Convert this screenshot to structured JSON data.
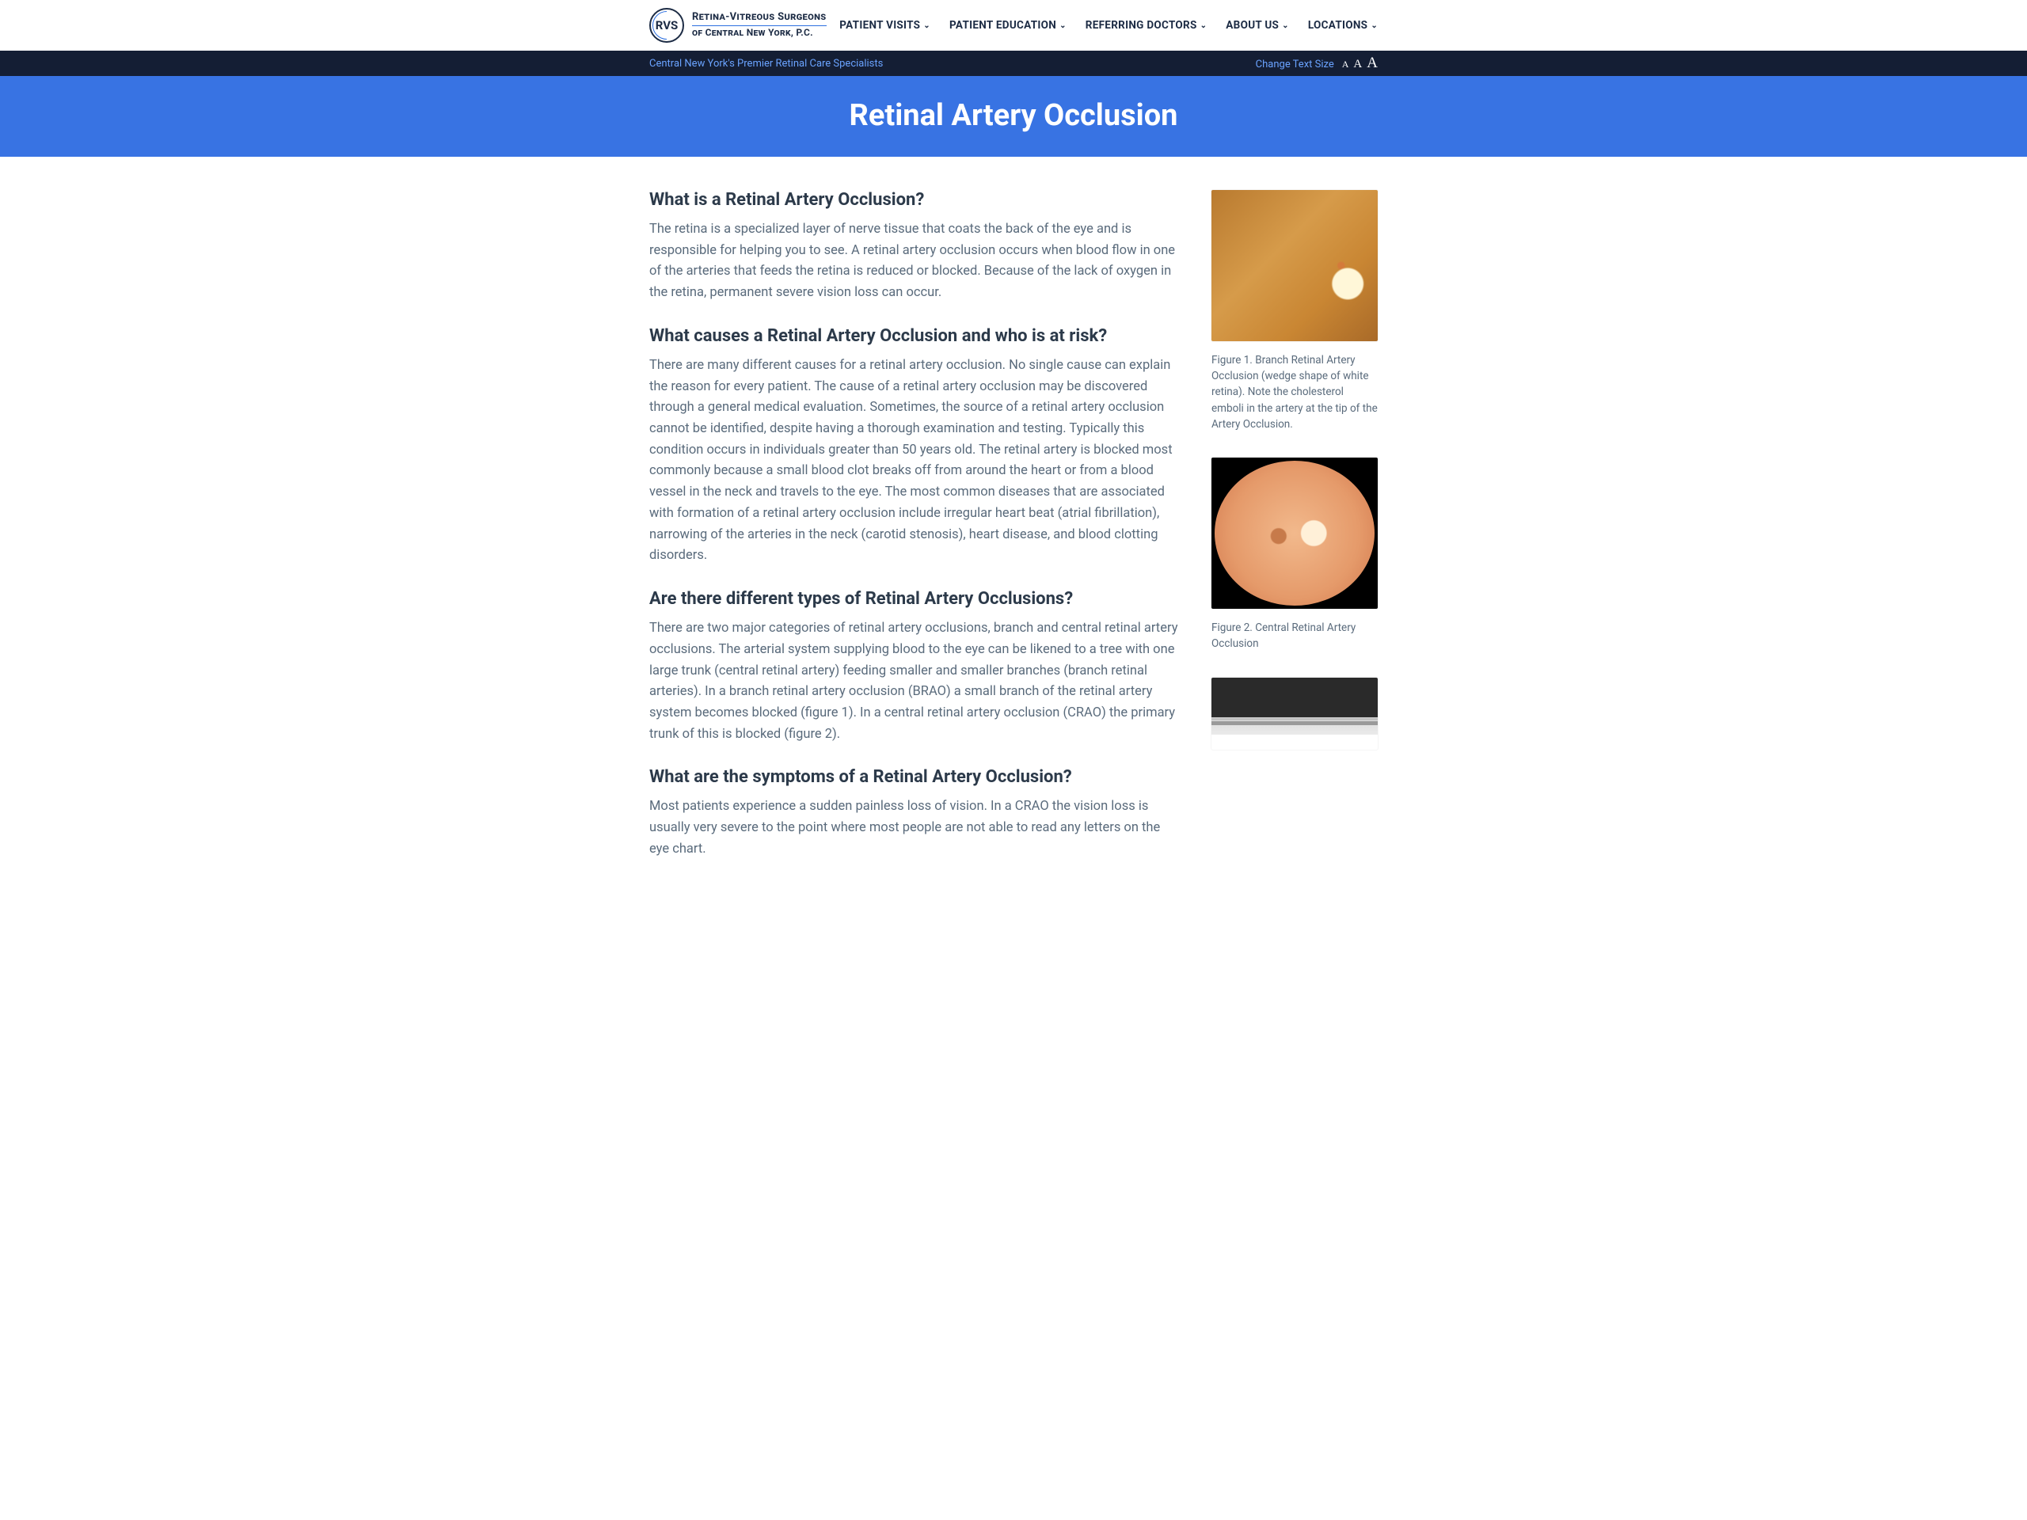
{
  "header": {
    "logo_abbrev": "RVS",
    "logo_line1": "Retina-Vitreous Surgeons",
    "logo_line2": "of Central New York, P.C.",
    "nav": [
      {
        "label": "PATIENT VISITS"
      },
      {
        "label": "PATIENT EDUCATION"
      },
      {
        "label": "REFERRING DOCTORS"
      },
      {
        "label": "ABOUT US"
      },
      {
        "label": "LOCATIONS"
      }
    ]
  },
  "subbar": {
    "tagline": "Central New York's Premier Retinal Care Specialists",
    "change_text_size": "Change Text Size"
  },
  "hero": {
    "title": "Retinal Artery Occlusion"
  },
  "article": {
    "s1_h": "What is a Retinal Artery Occlusion?",
    "s1_p": "The retina is a specialized layer of nerve tissue that coats the back of the eye and is responsible for helping you to see. A retinal artery occlusion occurs when blood flow in one of the arteries that feeds the retina is reduced or blocked. Because of the lack of oxygen in the retina, permanent severe vision loss can occur.",
    "s2_h": "What causes a Retinal Artery Occlusion and who is at risk?",
    "s2_p": "There are many different causes for a retinal artery occlusion. No single cause can explain the reason for every patient. The cause of a retinal artery occlusion may be discovered through a general medical evaluation. Sometimes, the source of a retinal artery occlusion cannot be identified, despite having a thorough examination and testing. Typically this condition occurs in individuals greater than 50 years old. The retinal artery is blocked most commonly because a small blood clot breaks off from around the heart or from a blood vessel in the neck and travels to the eye. The most common diseases that are associated with formation of a retinal artery occlusion include irregular heart beat (atrial fibrillation), narrowing of the arteries in the neck (carotid stenosis), heart disease, and blood clotting disorders.",
    "s3_h": "Are there different types of Retinal Artery Occlusions?",
    "s3_p": "There are two major categories of retinal artery occlusions, branch and central retinal artery occlusions. The arterial system supplying blood to the eye can be likened to a tree with one large trunk (central retinal artery) feeding smaller and smaller branches (branch retinal arteries). In a branch retinal artery occlusion (BRAO) a small branch of the retinal artery system becomes blocked (figure 1). In a central retinal artery occlusion (CRAO) the primary trunk of this is blocked (figure 2).",
    "s4_h": "What are the symptoms of a Retinal Artery Occlusion?",
    "s4_p": "Most patients experience a sudden painless loss of vision. In a CRAO the vision loss is usually very severe to the point where most people are not able to read any letters on the eye chart."
  },
  "figures": {
    "f1_caption": "Figure 1. Branch Retinal Artery Occlusion (wedge shape of white retina). Note the cholesterol emboli in the artery at the tip of the Artery Occlusion.",
    "f2_caption": "Figure 2. Central Retinal Artery Occlusion"
  },
  "colors": {
    "hero_bg": "#3873e3",
    "subbar_bg": "#141e34",
    "subbar_text": "#6aa3ff",
    "heading": "#2c3a4a",
    "body_text": "#5a6b7c"
  }
}
